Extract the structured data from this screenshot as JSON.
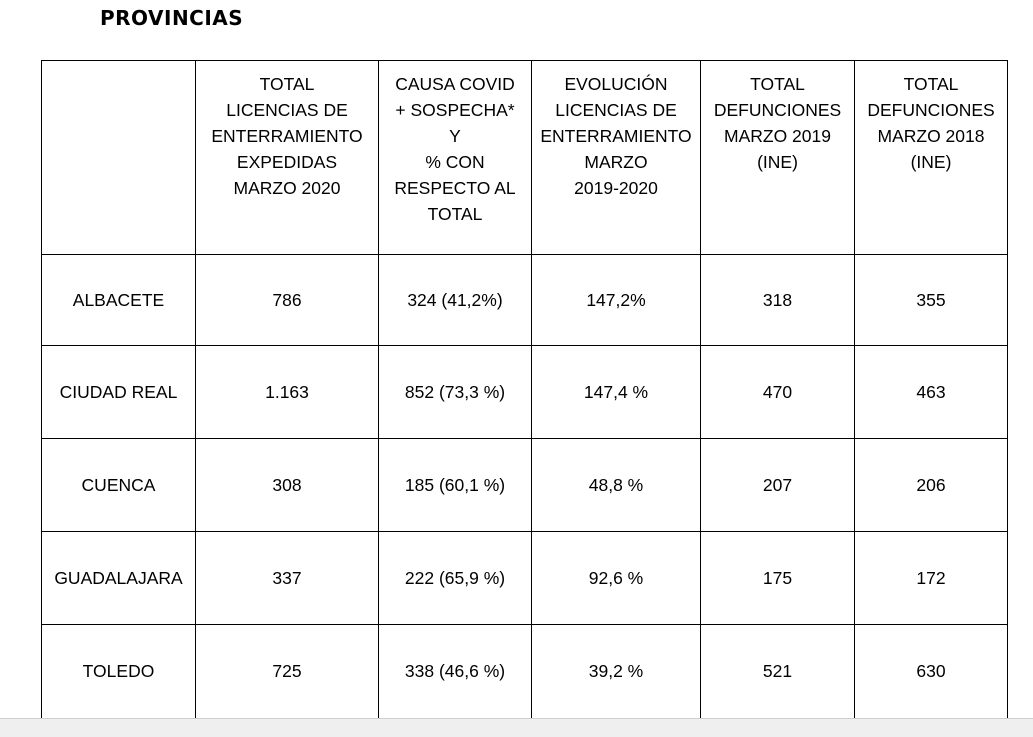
{
  "title": "PROVINCIAS",
  "table": {
    "headers": [
      [],
      [
        "TOTAL",
        "LICENCIAS DE",
        "ENTERRAMIENTO",
        "EXPEDIDAS",
        "MARZO 2020"
      ],
      [
        "CAUSA COVID",
        "+ SOSPECHA*",
        "Y",
        "% CON",
        "RESPECTO AL",
        "TOTAL"
      ],
      [
        "EVOLUCIÓN",
        "LICENCIAS DE",
        "ENTERRAMIENTO",
        "MARZO",
        "2019-2020"
      ],
      [
        "TOTAL",
        "DEFUNCIONES",
        "MARZO 2019",
        "(INE)"
      ],
      [
        "TOTAL",
        "DEFUNCIONES",
        "MARZO 2018",
        "(INE)"
      ]
    ],
    "rows": [
      [
        "ALBACETE",
        "786",
        "324 (41,2%)",
        "147,2%",
        "318",
        "355"
      ],
      [
        "CIUDAD REAL",
        "1.163",
        "852 (73,3 %)",
        "147,4 %",
        "470",
        "463"
      ],
      [
        "CUENCA",
        "308",
        "185 (60,1 %)",
        "48,8 %",
        "207",
        "206"
      ],
      [
        "GUADALAJARA",
        "337",
        "222 (65,9 %)",
        "92,6 %",
        "175",
        "172"
      ],
      [
        "TOLEDO",
        "725",
        "338 (46,6 %)",
        "39,2 %",
        "521",
        "630"
      ]
    ]
  }
}
